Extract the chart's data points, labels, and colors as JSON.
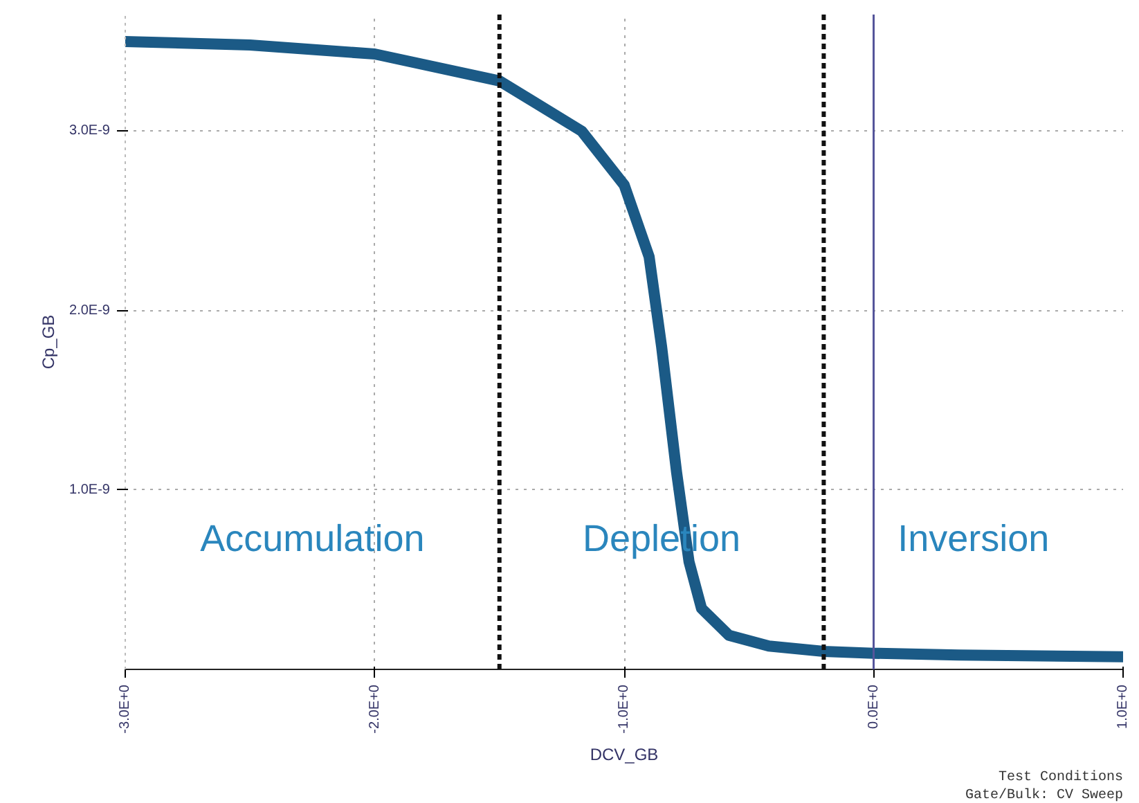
{
  "chart_data": {
    "type": "line",
    "xlabel": "DCV_GB",
    "ylabel": "Cp_GB",
    "x": [
      -3,
      -2.5,
      -2,
      -1.5,
      -1.17,
      -1,
      -0.9,
      -0.85,
      -0.79,
      -0.74,
      -0.69,
      -0.58,
      -0.42,
      -0.2,
      0,
      0.34,
      1
    ],
    "series": [
      {
        "color": "#1b5a86",
        "values": [
          3.5e-09,
          3.48e-09,
          3.43e-09,
          3.28e-09,
          3e-09,
          2.7e-09,
          2.3e-09,
          1.8e-09,
          1.1e-09,
          6e-10,
          3.4e-10,
          1.9e-10,
          1.3e-10,
          1e-10,
          9e-11,
          8e-11,
          7e-11
        ]
      }
    ],
    "xlim": [
      -3,
      1
    ],
    "ylim": [
      0,
      3.65e-09
    ],
    "xticks": [
      {
        "value": -3,
        "label": "-3.0E+0"
      },
      {
        "value": -2,
        "label": "-2.0E+0"
      },
      {
        "value": -1,
        "label": "-1.0E+0"
      },
      {
        "value": 0,
        "label": "0.0E+0"
      },
      {
        "value": 1,
        "label": "1.0E+0"
      }
    ],
    "yticks": [
      {
        "value": 1e-09,
        "label": "1.0E-9"
      },
      {
        "value": 2e-09,
        "label": "2.0E-9"
      },
      {
        "value": 3e-09,
        "label": "3.0E-9"
      }
    ],
    "grid": true,
    "line_style": "solid",
    "ref_lines": [
      {
        "axis": "x",
        "value": -1.5,
        "color": "#111111",
        "line_style": "dashed"
      },
      {
        "axis": "x",
        "value": -0.2,
        "color": "#111111",
        "line_style": "dashed"
      },
      {
        "axis": "x",
        "value": 0,
        "color": "#55559a",
        "line_style": "solid"
      }
    ],
    "annotations": [
      "Accumulation",
      "Depletion",
      "Inversion",
      "Test Conditions",
      "Gate/Bulk: CV Sweep"
    ]
  }
}
